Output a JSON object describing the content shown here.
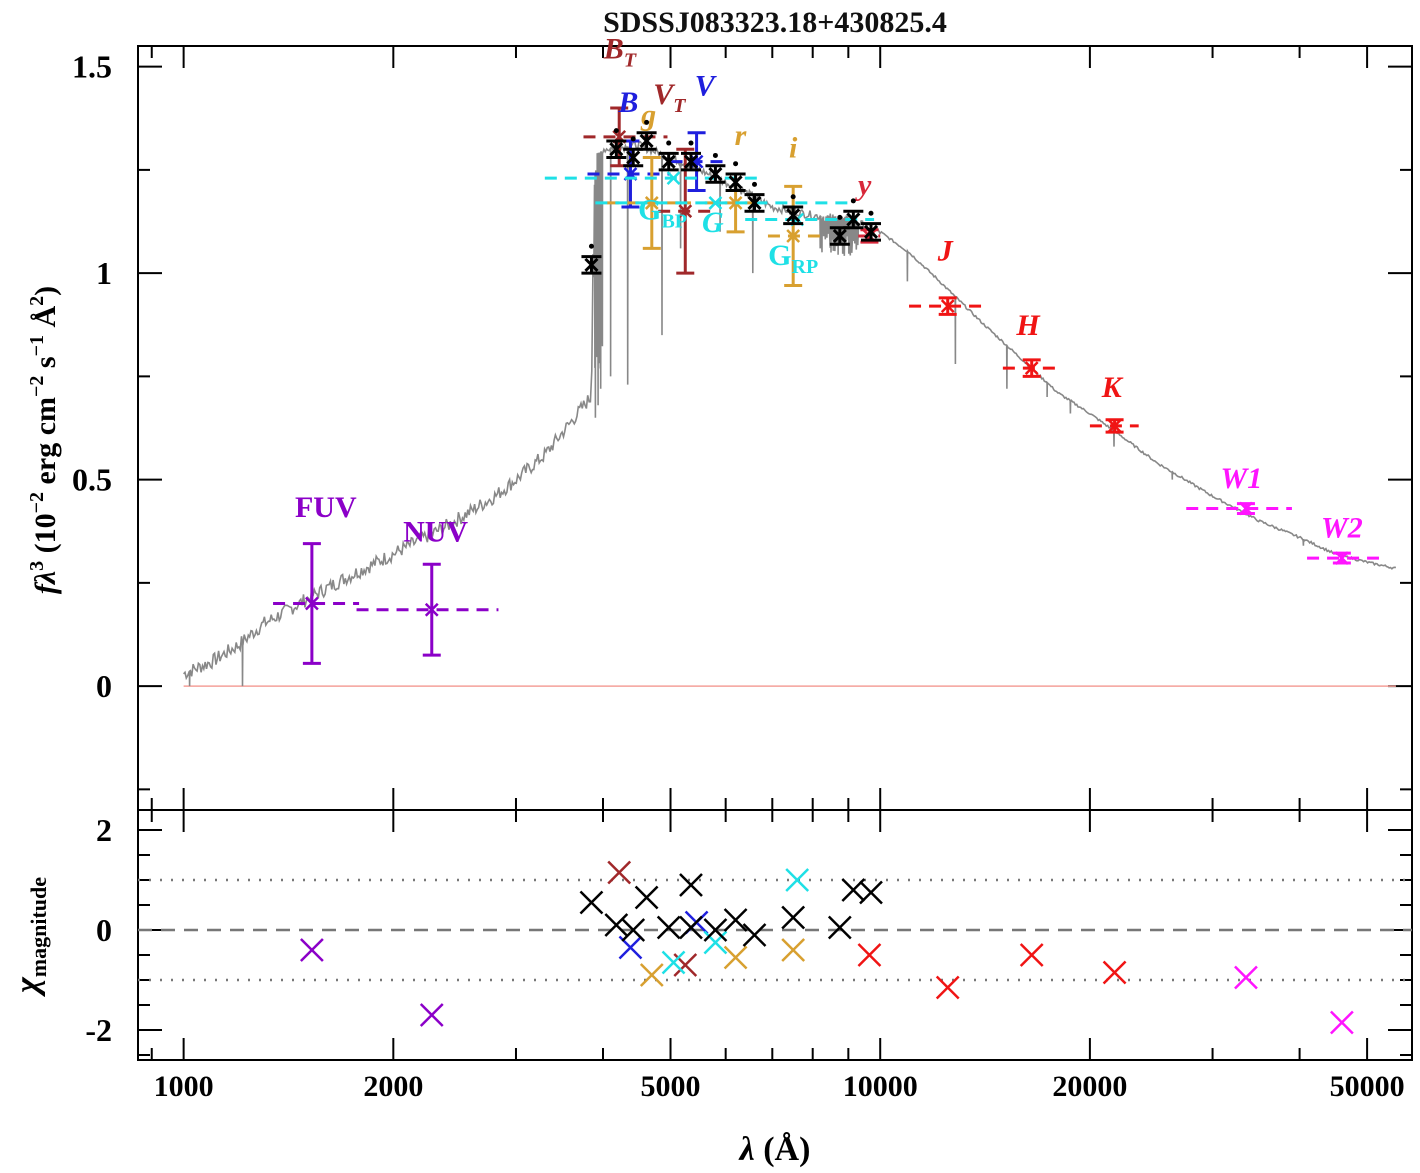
{
  "chart_data": [
    {
      "panel": "sed",
      "type": "scatter",
      "title": "SDSSJ083323.18+430825.4",
      "ylabel": "fλ³ (10⁻² erg cm⁻² s⁻¹ Å²)",
      "ylabel_parts": {
        "f": "f",
        "lambda": "λ",
        "p3": "3",
        "pre": " (10",
        "e1": "−2",
        "erg": " erg cm",
        "e2": "−2",
        "s": " s",
        "e3": "−1",
        "ang": " Å",
        "e4": "2",
        "close": ")"
      },
      "xscale": "log",
      "xlim": [
        860,
        58000
      ],
      "ylim": [
        -0.3,
        1.55
      ],
      "yticks": [
        {
          "v": 0,
          "label": "0"
        },
        {
          "v": 0.5,
          "label": "0.5"
        },
        {
          "v": 1,
          "label": "1"
        },
        {
          "v": 1.5,
          "label": "1.5"
        }
      ],
      "zero_line_color": "#f4a09a",
      "model_color": "#888888",
      "model_continuum": [
        [
          1000,
          0.03
        ],
        [
          1100,
          0.06
        ],
        [
          1200,
          0.1
        ],
        [
          1300,
          0.15
        ],
        [
          1400,
          0.18
        ],
        [
          1500,
          0.21
        ],
        [
          1700,
          0.26
        ],
        [
          2000,
          0.32
        ],
        [
          2400,
          0.39
        ],
        [
          2800,
          0.46
        ],
        [
          3000,
          0.5
        ],
        [
          3300,
          0.56
        ],
        [
          3600,
          0.64
        ],
        [
          3800,
          0.69
        ],
        [
          3850,
          0.7
        ],
        [
          3880,
          1.2
        ],
        [
          3920,
          1.28
        ],
        [
          4000,
          1.3
        ],
        [
          4500,
          1.31
        ],
        [
          5000,
          1.28
        ],
        [
          5500,
          1.25
        ],
        [
          6000,
          1.22
        ],
        [
          6500,
          1.19
        ],
        [
          7000,
          1.16
        ],
        [
          8000,
          1.14
        ],
        [
          9000,
          1.13
        ],
        [
          10000,
          1.1
        ],
        [
          11000,
          1.05
        ],
        [
          12000,
          0.99
        ],
        [
          14000,
          0.88
        ],
        [
          16000,
          0.79
        ],
        [
          18000,
          0.71
        ],
        [
          20000,
          0.66
        ],
        [
          22000,
          0.61
        ],
        [
          25000,
          0.54
        ],
        [
          30000,
          0.46
        ],
        [
          35000,
          0.4
        ],
        [
          40000,
          0.36
        ],
        [
          45000,
          0.32
        ],
        [
          50000,
          0.3
        ],
        [
          55000,
          0.285
        ]
      ],
      "model_dips": [
        [
          1020,
          0.0
        ],
        [
          1215,
          0.0
        ],
        [
          3900,
          0.65
        ],
        [
          3935,
          0.68
        ],
        [
          3970,
          0.72
        ],
        [
          4102,
          0.75
        ],
        [
          4340,
          0.73
        ],
        [
          4861,
          0.85
        ],
        [
          5170,
          1.06
        ],
        [
          5890,
          1.1
        ],
        [
          6563,
          1.0
        ],
        [
          8200,
          1.06
        ],
        [
          8500,
          1.05
        ],
        [
          8700,
          1.07
        ],
        [
          9000,
          1.08
        ],
        [
          10940,
          0.98
        ],
        [
          12820,
          0.78
        ],
        [
          15200,
          0.72
        ],
        [
          17360,
          0.7
        ],
        [
          18750,
          0.66
        ],
        [
          21660,
          0.58
        ],
        [
          26260,
          0.5
        ],
        [
          40500,
          0.34
        ]
      ],
      "bands": [
        {
          "name": "FUV",
          "label": "FUV",
          "italic": false,
          "color": "#8b00c8",
          "x": 1528,
          "xlo": 1344,
          "xhi": 1786,
          "y": 0.2,
          "err": 0.145,
          "lx": 1600,
          "ly": 0.41
        },
        {
          "name": "NUV",
          "label": "NUV",
          "italic": false,
          "color": "#8b00c8",
          "x": 2271,
          "xlo": 1771,
          "xhi": 2831,
          "y": 0.185,
          "err": 0.11,
          "lx": 2300,
          "ly": 0.35
        },
        {
          "name": "BT",
          "label": "B",
          "sub": "T",
          "italic": true,
          "color": "#a0282a",
          "x": 4220,
          "xlo": 3750,
          "xhi": 4950,
          "y": 1.33,
          "err": 0.07,
          "lx": 4230,
          "ly": 1.52
        },
        {
          "name": "VT",
          "label": "V",
          "sub": "T",
          "italic": true,
          "color": "#a0282a",
          "x": 5250,
          "xlo": 4800,
          "xhi": 5700,
          "y": 1.15,
          "err": 0.15,
          "lx": 4980,
          "ly": 1.41
        },
        {
          "name": "B",
          "label": "B",
          "italic": true,
          "color": "#1f1fdd",
          "x": 4380,
          "xlo": 3800,
          "xhi": 5000,
          "y": 1.24,
          "err": 0.08,
          "lx": 4350,
          "ly": 1.39
        },
        {
          "name": "V",
          "label": "V",
          "italic": true,
          "color": "#1f1fdd",
          "x": 5450,
          "xlo": 5000,
          "xhi": 6000,
          "y": 1.27,
          "err": 0.07,
          "lx": 5600,
          "ly": 1.43
        },
        {
          "name": "g",
          "label": "g",
          "italic": true,
          "color": "#d8a030",
          "x": 4700,
          "xlo": 4050,
          "xhi": 5350,
          "y": 1.17,
          "err": 0.11,
          "lx": 4650,
          "ly": 1.36
        },
        {
          "name": "r",
          "label": "r",
          "italic": true,
          "color": "#d8a030",
          "x": 6200,
          "xlo": 5600,
          "xhi": 6800,
          "y": 1.17,
          "err": 0.07,
          "lx": 6300,
          "ly": 1.31
        },
        {
          "name": "i",
          "label": "i",
          "italic": true,
          "color": "#d8a030",
          "x": 7500,
          "xlo": 6900,
          "xhi": 8200,
          "y": 1.09,
          "err": 0.12,
          "lx": 7500,
          "ly": 1.28
        },
        {
          "name": "y",
          "label": "y",
          "italic": true,
          "color": "#d8283a",
          "x": 9650,
          "xlo": 9300,
          "xhi": 10000,
          "y": 1.09,
          "err": 0.015,
          "lx": 9500,
          "ly": 1.19
        },
        {
          "name": "GBP",
          "label": "G",
          "sub": "BP",
          "italic": false,
          "color": "#1ee0e6",
          "x": 5050,
          "xlo": 3300,
          "xhi": 6800,
          "y": 1.23,
          "err": 0.0,
          "lx": 4870,
          "ly": 1.13
        },
        {
          "name": "G",
          "label": "G",
          "italic": true,
          "color": "#1ee0e6",
          "x": 5800,
          "xlo": 3900,
          "xhi": 9000,
          "y": 1.17,
          "err": 0.0,
          "lx": 5750,
          "ly": 1.1
        },
        {
          "name": "GRP",
          "label": "G",
          "sub": "RP",
          "italic": false,
          "color": "#1ee0e6",
          "x": 7600,
          "xlo": 6400,
          "xhi": 9800,
          "y": 1.13,
          "err": 0.0,
          "lx": 7500,
          "ly": 1.02
        },
        {
          "name": "J",
          "label": "J",
          "italic": true,
          "color": "#f01414",
          "x": 12500,
          "xlo": 11000,
          "xhi": 14000,
          "y": 0.92,
          "err": 0.02,
          "lx": 12400,
          "ly": 1.03
        },
        {
          "name": "H",
          "label": "H",
          "italic": true,
          "color": "#f01414",
          "x": 16500,
          "xlo": 15000,
          "xhi": 18000,
          "y": 0.77,
          "err": 0.02,
          "lx": 16300,
          "ly": 0.85
        },
        {
          "name": "K",
          "label": "K",
          "italic": true,
          "color": "#f01414",
          "x": 21700,
          "xlo": 20000,
          "xhi": 23500,
          "y": 0.63,
          "err": 0.015,
          "lx": 21500,
          "ly": 0.7
        },
        {
          "name": "W1",
          "label": "W1",
          "italic": true,
          "color": "#ff14ff",
          "x": 33500,
          "xlo": 27500,
          "xhi": 39000,
          "y": 0.43,
          "err": 0.012,
          "lx": 33000,
          "ly": 0.48
        },
        {
          "name": "W2",
          "label": "W2",
          "italic": true,
          "color": "#ff14ff",
          "x": 46000,
          "xlo": 41000,
          "xhi": 52000,
          "y": 0.31,
          "err": 0.012,
          "lx": 46000,
          "ly": 0.36
        }
      ],
      "spectro_points": [
        {
          "x": 3850,
          "y": 1.02,
          "err": 0.02
        },
        {
          "x": 4180,
          "y": 1.3,
          "err": 0.02
        },
        {
          "x": 4420,
          "y": 1.28,
          "err": 0.02
        },
        {
          "x": 4620,
          "y": 1.32,
          "err": 0.02
        },
        {
          "x": 4970,
          "y": 1.27,
          "err": 0.02
        },
        {
          "x": 5350,
          "y": 1.27,
          "err": 0.02
        },
        {
          "x": 5800,
          "y": 1.24,
          "err": 0.02
        },
        {
          "x": 6200,
          "y": 1.22,
          "err": 0.02
        },
        {
          "x": 6600,
          "y": 1.17,
          "err": 0.02
        },
        {
          "x": 7500,
          "y": 1.14,
          "err": 0.02
        },
        {
          "x": 8750,
          "y": 1.09,
          "err": 0.02
        },
        {
          "x": 9150,
          "y": 1.13,
          "err": 0.02
        },
        {
          "x": 9700,
          "y": 1.1,
          "err": 0.02
        }
      ]
    },
    {
      "panel": "residuals",
      "type": "scatter",
      "ylabel": "χ",
      "ylabel_sub": "magnitude",
      "xlabel": "λ (Å)",
      "xlabel_parts": {
        "lam": "λ",
        "unit": " (Å)"
      },
      "xscale": "log",
      "xlim": [
        860,
        58000
      ],
      "ylim": [
        -2.6,
        2.4
      ],
      "yticks": [
        {
          "v": 2,
          "label": "2"
        },
        {
          "v": 0,
          "label": "0"
        },
        {
          "v": -2,
          "label": "-2"
        }
      ],
      "xticks": [
        {
          "v": 1000,
          "label": "1000"
        },
        {
          "v": 2000,
          "label": "2000"
        },
        {
          "v": 5000,
          "label": "5000"
        },
        {
          "v": 10000,
          "label": "10000"
        },
        {
          "v": 20000,
          "label": "20000"
        },
        {
          "v": 50000,
          "label": "50000"
        }
      ],
      "ref_lines": [
        {
          "y": 0,
          "style": "dashed"
        },
        {
          "y": 1,
          "style": "dotted"
        },
        {
          "y": -1,
          "style": "dotted"
        }
      ],
      "points": [
        {
          "x": 1528,
          "y": -0.4,
          "color": "#8b00c8"
        },
        {
          "x": 2271,
          "y": -1.7,
          "color": "#8b00c8"
        },
        {
          "x": 4220,
          "y": 1.15,
          "color": "#a0282a"
        },
        {
          "x": 5250,
          "y": -0.7,
          "color": "#a0282a"
        },
        {
          "x": 4380,
          "y": -0.35,
          "color": "#1f1fdd"
        },
        {
          "x": 5450,
          "y": 0.15,
          "color": "#1f1fdd"
        },
        {
          "x": 4700,
          "y": -0.9,
          "color": "#d8a030"
        },
        {
          "x": 6200,
          "y": -0.55,
          "color": "#d8a030"
        },
        {
          "x": 7500,
          "y": -0.4,
          "color": "#d8a030"
        },
        {
          "x": 5050,
          "y": -0.65,
          "color": "#1ee0e6"
        },
        {
          "x": 5800,
          "y": -0.25,
          "color": "#1ee0e6"
        },
        {
          "x": 7600,
          "y": 1.0,
          "color": "#1ee0e6"
        },
        {
          "x": 9650,
          "y": -0.5,
          "color": "#f01414"
        },
        {
          "x": 12500,
          "y": -1.15,
          "color": "#f01414"
        },
        {
          "x": 16500,
          "y": -0.5,
          "color": "#f01414"
        },
        {
          "x": 21700,
          "y": -0.85,
          "color": "#f01414"
        },
        {
          "x": 33500,
          "y": -0.95,
          "color": "#ff14ff"
        },
        {
          "x": 46000,
          "y": -1.85,
          "color": "#ff14ff"
        },
        {
          "x": 3850,
          "y": 0.55,
          "color": "#000000"
        },
        {
          "x": 4180,
          "y": 0.1,
          "color": "#000000"
        },
        {
          "x": 4420,
          "y": 0.0,
          "color": "#000000"
        },
        {
          "x": 4620,
          "y": 0.65,
          "color": "#000000"
        },
        {
          "x": 4970,
          "y": 0.05,
          "color": "#000000"
        },
        {
          "x": 5350,
          "y": 0.9,
          "color": "#000000"
        },
        {
          "x": 5350,
          "y": 0.05,
          "color": "#000000"
        },
        {
          "x": 5800,
          "y": 0.0,
          "color": "#000000"
        },
        {
          "x": 6200,
          "y": 0.2,
          "color": "#000000"
        },
        {
          "x": 6600,
          "y": -0.1,
          "color": "#000000"
        },
        {
          "x": 7500,
          "y": 0.25,
          "color": "#000000"
        },
        {
          "x": 8750,
          "y": 0.05,
          "color": "#000000"
        },
        {
          "x": 9150,
          "y": 0.8,
          "color": "#000000"
        },
        {
          "x": 9700,
          "y": 0.75,
          "color": "#000000"
        }
      ]
    }
  ]
}
